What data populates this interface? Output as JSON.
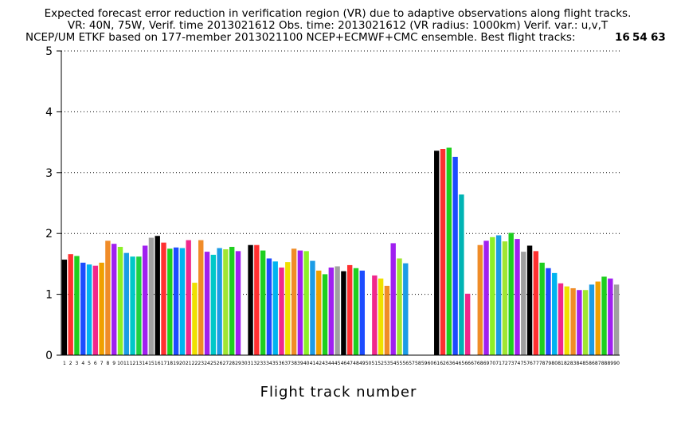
{
  "title_lines": [
    "Expected forecast error reduction in verification region (VR) due to adaptive observations along flight tracks.",
    "VR: 40N, 75W, Verif. time 2013021612 Obs. time: 2013021612 (VR radius: 1000km)  Verif. var.: u,v,T",
    "NCEP/UM ETKF based on 177-member 2013021100 NCEP+ECMWF+CMC ensemble. Best flight tracks:"
  ],
  "best_tracks": [
    {
      "label": "16",
      "color": "#ff3030"
    },
    {
      "label": "54",
      "color": "#1c4cff"
    },
    {
      "label": "63",
      "color": "#909090"
    }
  ],
  "chart_data": {
    "type": "bar",
    "title": "Expected forecast error reduction in verification region (VR) due to adaptive observations along flight tracks.",
    "xlabel": "Flight track number",
    "ylabel": "",
    "ylim": [
      0,
      5
    ],
    "yticks": [
      0,
      1,
      2,
      3,
      4,
      5
    ],
    "grid": true,
    "categories": [
      "1",
      "2",
      "3",
      "4",
      "5",
      "6",
      "7",
      "8",
      "9",
      "10",
      "11",
      "12",
      "13",
      "14",
      "15",
      "16",
      "17",
      "18",
      "19",
      "20",
      "21",
      "22",
      "23",
      "24",
      "25",
      "26",
      "27",
      "28",
      "29",
      "30",
      "31",
      "32",
      "33",
      "34",
      "35",
      "36",
      "37",
      "38",
      "39",
      "40",
      "41",
      "42",
      "43",
      "44",
      "45",
      "46",
      "47",
      "48",
      "49",
      "50",
      "51",
      "52",
      "53",
      "54",
      "55",
      "56",
      "57",
      "58",
      "59",
      "60",
      "61",
      "62",
      "63",
      "64",
      "65",
      "66",
      "67",
      "68",
      "69",
      "70",
      "71",
      "72",
      "73",
      "74",
      "75",
      "76",
      "77",
      "78",
      "79",
      "80",
      "81",
      "82",
      "83",
      "84",
      "85",
      "86",
      "87",
      "88",
      "89",
      "90"
    ],
    "values": [
      1.57,
      1.66,
      1.63,
      1.52,
      1.49,
      1.47,
      1.52,
      1.88,
      1.83,
      1.78,
      1.68,
      1.62,
      1.62,
      1.8,
      1.93,
      1.96,
      1.85,
      1.75,
      1.77,
      1.76,
      1.89,
      1.19,
      1.89,
      1.7,
      1.65,
      1.76,
      1.74,
      1.78,
      1.71,
      0,
      1.81,
      1.81,
      1.72,
      1.59,
      1.54,
      1.44,
      1.53,
      1.75,
      1.72,
      1.71,
      1.55,
      1.39,
      1.33,
      1.44,
      1.46,
      1.38,
      1.48,
      1.43,
      1.39,
      0,
      1.31,
      1.26,
      1.14,
      1.84,
      1.59,
      1.51,
      0,
      0,
      0,
      0,
      3.36,
      3.39,
      3.41,
      3.26,
      2.64,
      1.01,
      0,
      1.81,
      1.88,
      1.94,
      1.97,
      1.87,
      2.01,
      1.91,
      1.7,
      1.8,
      1.71,
      1.52,
      1.43,
      1.35,
      1.18,
      1.13,
      1.1,
      1.07,
      1.07,
      1.16,
      1.21,
      1.29,
      1.26,
      1.16
    ],
    "colors": [
      "#000000",
      "#ff3030",
      "#1fcf1f",
      "#1c4cff",
      "#00b4f0",
      "#f0288c",
      "#f0a000",
      "#f08c28",
      "#a020f0",
      "#8cf028",
      "#1c9ce6",
      "#00c8c8",
      "#20d040",
      "#a020f0",
      "#a0a0a0",
      "#000000",
      "#ff3030",
      "#1fcf1f",
      "#1c4cff",
      "#00b4f0",
      "#f0288c",
      "#f0e000",
      "#f08c28",
      "#a020f0",
      "#00c8c8",
      "#1c9ce6",
      "#a0e632",
      "#1fcf1f",
      "#a020f0",
      "#a0a0a0",
      "#000000",
      "#ff3030",
      "#1fcf1f",
      "#1c4cff",
      "#00b4f0",
      "#f0288c",
      "#f0e000",
      "#f08c28",
      "#a020f0",
      "#8cf028",
      "#1c9ce6",
      "#f0a000",
      "#1fcf1f",
      "#a020f0",
      "#a0a0a0",
      "#000000",
      "#ff3030",
      "#1fcf1f",
      "#1c4cff",
      "#00b4f0",
      "#f0288c",
      "#f0e000",
      "#f08c28",
      "#a020f0",
      "#a0e632",
      "#1c9ce6",
      "#00c8c8",
      "#1fcf1f",
      "#a020f0",
      "#a0a0a0",
      "#000000",
      "#ff3030",
      "#1fcf1f",
      "#1c4cff",
      "#00b4b4",
      "#f0288c",
      "#f0e000",
      "#f08c28",
      "#a020f0",
      "#8cf028",
      "#1c9ce6",
      "#a0e632",
      "#1fcf1f",
      "#a020f0",
      "#a0a0a0",
      "#000000",
      "#ff3030",
      "#1fcf1f",
      "#1c4cff",
      "#00b4f0",
      "#f0288c",
      "#f0e000",
      "#f08c28",
      "#a020f0",
      "#a0e632",
      "#1c9ce6",
      "#f0a000",
      "#1fcf1f",
      "#a020f0",
      "#a0a0a0"
    ]
  }
}
